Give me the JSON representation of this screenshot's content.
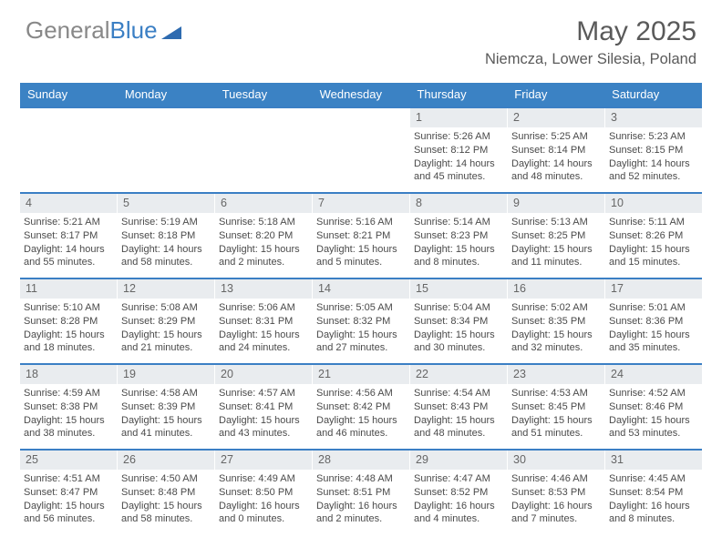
{
  "logo": {
    "text_gray": "General",
    "text_blue": "Blue"
  },
  "title": "May 2025",
  "location": "Niemcza, Lower Silesia, Poland",
  "colors": {
    "header_bg": "#3b82c4",
    "header_text": "#ffffff",
    "border": "#3b7fc4",
    "daynum_bg": "#e9ecef",
    "body_text": "#4a4a4a",
    "title_text": "#5a5a5a",
    "logo_gray": "#888888",
    "logo_blue": "#3b7fc4"
  },
  "day_names": [
    "Sunday",
    "Monday",
    "Tuesday",
    "Wednesday",
    "Thursday",
    "Friday",
    "Saturday"
  ],
  "cell_fontsize": 11,
  "daynum_fontsize": 12.5,
  "weeks": [
    [
      {
        "day": null
      },
      {
        "day": null
      },
      {
        "day": null
      },
      {
        "day": null
      },
      {
        "day": 1,
        "sunrise": "5:26 AM",
        "sunset": "8:12 PM",
        "daylight": "14 hours and 45 minutes."
      },
      {
        "day": 2,
        "sunrise": "5:25 AM",
        "sunset": "8:14 PM",
        "daylight": "14 hours and 48 minutes."
      },
      {
        "day": 3,
        "sunrise": "5:23 AM",
        "sunset": "8:15 PM",
        "daylight": "14 hours and 52 minutes."
      }
    ],
    [
      {
        "day": 4,
        "sunrise": "5:21 AM",
        "sunset": "8:17 PM",
        "daylight": "14 hours and 55 minutes."
      },
      {
        "day": 5,
        "sunrise": "5:19 AM",
        "sunset": "8:18 PM",
        "daylight": "14 hours and 58 minutes."
      },
      {
        "day": 6,
        "sunrise": "5:18 AM",
        "sunset": "8:20 PM",
        "daylight": "15 hours and 2 minutes."
      },
      {
        "day": 7,
        "sunrise": "5:16 AM",
        "sunset": "8:21 PM",
        "daylight": "15 hours and 5 minutes."
      },
      {
        "day": 8,
        "sunrise": "5:14 AM",
        "sunset": "8:23 PM",
        "daylight": "15 hours and 8 minutes."
      },
      {
        "day": 9,
        "sunrise": "5:13 AM",
        "sunset": "8:25 PM",
        "daylight": "15 hours and 11 minutes."
      },
      {
        "day": 10,
        "sunrise": "5:11 AM",
        "sunset": "8:26 PM",
        "daylight": "15 hours and 15 minutes."
      }
    ],
    [
      {
        "day": 11,
        "sunrise": "5:10 AM",
        "sunset": "8:28 PM",
        "daylight": "15 hours and 18 minutes."
      },
      {
        "day": 12,
        "sunrise": "5:08 AM",
        "sunset": "8:29 PM",
        "daylight": "15 hours and 21 minutes."
      },
      {
        "day": 13,
        "sunrise": "5:06 AM",
        "sunset": "8:31 PM",
        "daylight": "15 hours and 24 minutes."
      },
      {
        "day": 14,
        "sunrise": "5:05 AM",
        "sunset": "8:32 PM",
        "daylight": "15 hours and 27 minutes."
      },
      {
        "day": 15,
        "sunrise": "5:04 AM",
        "sunset": "8:34 PM",
        "daylight": "15 hours and 30 minutes."
      },
      {
        "day": 16,
        "sunrise": "5:02 AM",
        "sunset": "8:35 PM",
        "daylight": "15 hours and 32 minutes."
      },
      {
        "day": 17,
        "sunrise": "5:01 AM",
        "sunset": "8:36 PM",
        "daylight": "15 hours and 35 minutes."
      }
    ],
    [
      {
        "day": 18,
        "sunrise": "4:59 AM",
        "sunset": "8:38 PM",
        "daylight": "15 hours and 38 minutes."
      },
      {
        "day": 19,
        "sunrise": "4:58 AM",
        "sunset": "8:39 PM",
        "daylight": "15 hours and 41 minutes."
      },
      {
        "day": 20,
        "sunrise": "4:57 AM",
        "sunset": "8:41 PM",
        "daylight": "15 hours and 43 minutes."
      },
      {
        "day": 21,
        "sunrise": "4:56 AM",
        "sunset": "8:42 PM",
        "daylight": "15 hours and 46 minutes."
      },
      {
        "day": 22,
        "sunrise": "4:54 AM",
        "sunset": "8:43 PM",
        "daylight": "15 hours and 48 minutes."
      },
      {
        "day": 23,
        "sunrise": "4:53 AM",
        "sunset": "8:45 PM",
        "daylight": "15 hours and 51 minutes."
      },
      {
        "day": 24,
        "sunrise": "4:52 AM",
        "sunset": "8:46 PM",
        "daylight": "15 hours and 53 minutes."
      }
    ],
    [
      {
        "day": 25,
        "sunrise": "4:51 AM",
        "sunset": "8:47 PM",
        "daylight": "15 hours and 56 minutes."
      },
      {
        "day": 26,
        "sunrise": "4:50 AM",
        "sunset": "8:48 PM",
        "daylight": "15 hours and 58 minutes."
      },
      {
        "day": 27,
        "sunrise": "4:49 AM",
        "sunset": "8:50 PM",
        "daylight": "16 hours and 0 minutes."
      },
      {
        "day": 28,
        "sunrise": "4:48 AM",
        "sunset": "8:51 PM",
        "daylight": "16 hours and 2 minutes."
      },
      {
        "day": 29,
        "sunrise": "4:47 AM",
        "sunset": "8:52 PM",
        "daylight": "16 hours and 4 minutes."
      },
      {
        "day": 30,
        "sunrise": "4:46 AM",
        "sunset": "8:53 PM",
        "daylight": "16 hours and 7 minutes."
      },
      {
        "day": 31,
        "sunrise": "4:45 AM",
        "sunset": "8:54 PM",
        "daylight": "16 hours and 8 minutes."
      }
    ]
  ],
  "labels": {
    "sunrise": "Sunrise:",
    "sunset": "Sunset:",
    "daylight": "Daylight:"
  }
}
